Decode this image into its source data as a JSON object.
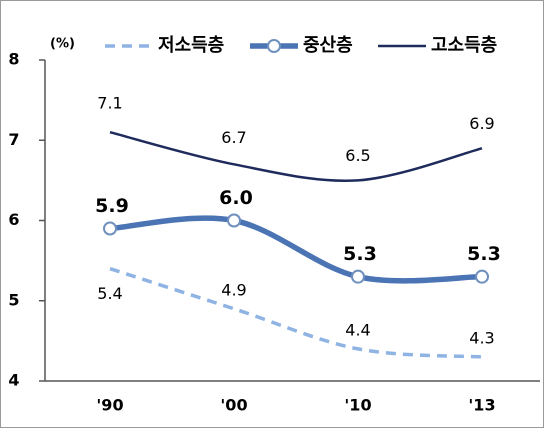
{
  "chart_data": {
    "type": "line",
    "unit_label": "(%)",
    "categories": [
      "'90",
      "'00",
      "'10",
      "'13"
    ],
    "series": [
      {
        "name": "저소득층",
        "color": "#8fb4e3",
        "style": "dashed",
        "values": [
          5.4,
          4.9,
          4.4,
          4.3
        ]
      },
      {
        "name": "중산층",
        "color": "#4a74b4",
        "style": "thick-marker",
        "values": [
          5.9,
          6.0,
          5.3,
          5.3
        ],
        "value_labels": [
          "5.9",
          "6.0",
          "5.3",
          "5.3"
        ]
      },
      {
        "name": "고소득층",
        "color": "#1f2b5c",
        "style": "solid",
        "values": [
          7.1,
          6.7,
          6.5,
          6.9
        ]
      }
    ],
    "ylim": [
      4,
      8
    ],
    "yticks": [
      4,
      5,
      6,
      7,
      8
    ],
    "grid": false,
    "legend": "top"
  }
}
